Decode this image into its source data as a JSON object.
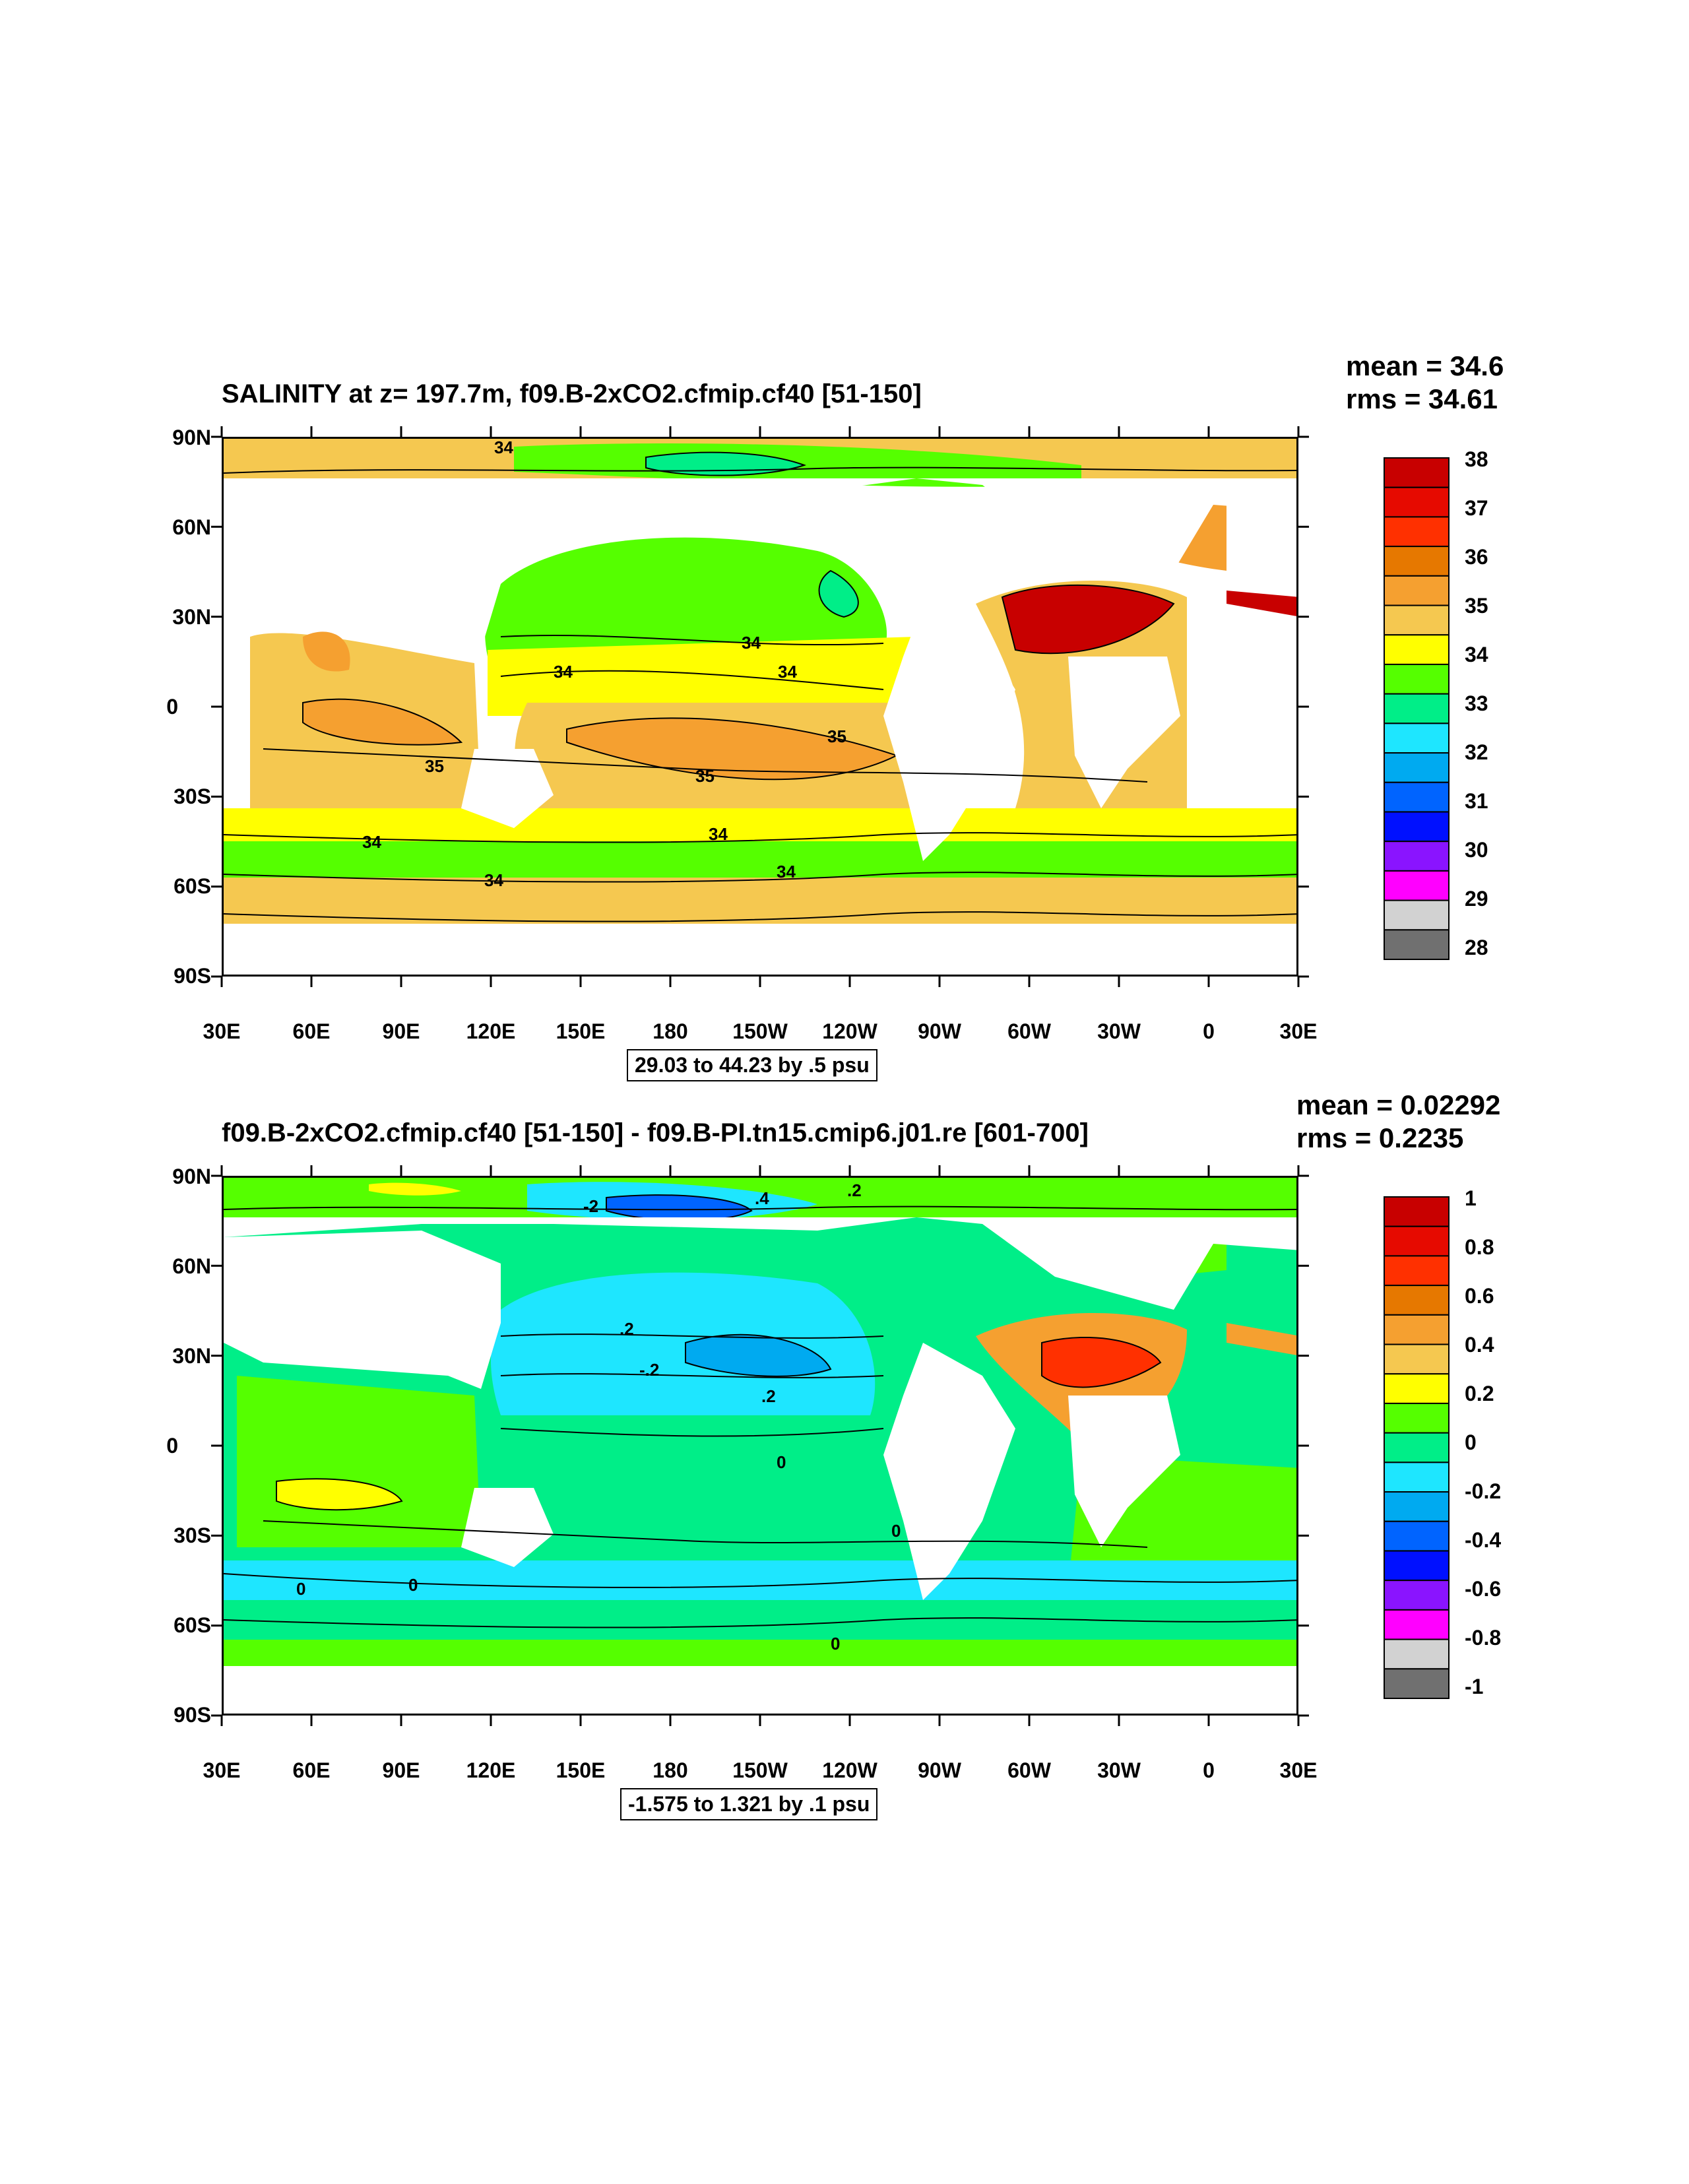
{
  "panels": [
    {
      "title": "SALINITY at z= 197.7m, f09.B-2xCO2.cfmip.cf40 [51-150]",
      "mean": "mean = 34.6",
      "rms": "rms = 34.61",
      "info": "29.03 to 44.23 by .5 psu",
      "lat_labels": [
        "90N",
        "60N",
        "30N",
        "0",
        "30S",
        "60S",
        "90S"
      ],
      "lon_labels": [
        "30E",
        "60E",
        "90E",
        "120E",
        "150E",
        "180",
        "150W",
        "120W",
        "90W",
        "60W",
        "30W",
        "0",
        "30E"
      ],
      "colorbar": {
        "labels": [
          "38",
          "37",
          "36",
          "35",
          "34",
          "33",
          "32",
          "31",
          "30",
          "29",
          "28"
        ],
        "colors": [
          "#c80000",
          "#e60a00",
          "#ff3000",
          "#e67800",
          "#f5a030",
          "#f5c850",
          "#ffff00",
          "#55ff00",
          "#00ee88",
          "#1ee6ff",
          "#00aaf0",
          "#0064ff",
          "#0010ff",
          "#8a14ff",
          "#ff00ff",
          "#d2d2d2",
          "#707070"
        ]
      },
      "contour_labels": [
        "34",
        "34",
        "34",
        "34",
        "35",
        "35",
        "35",
        "34",
        "34",
        "34",
        "34"
      ]
    },
    {
      "title": "f09.B-2xCO2.cfmip.cf40 [51-150] - f09.B-PI.tn15.cmip6.j01.re [601-700]",
      "mean": "mean = 0.02292",
      "rms": "rms = 0.2235",
      "info": "-1.575 to 1.321 by .1 psu",
      "lat_labels": [
        "90N",
        "60N",
        "30N",
        "0",
        "30S",
        "60S",
        "90S"
      ],
      "lon_labels": [
        "30E",
        "60E",
        "90E",
        "120E",
        "150E",
        "180",
        "150W",
        "120W",
        "90W",
        "60W",
        "30W",
        "0",
        "30E"
      ],
      "colorbar": {
        "labels": [
          "1",
          "0.8",
          "0.6",
          "0.4",
          "0.2",
          "0",
          "-0.2",
          "-0.4",
          "-0.6",
          "-0.8",
          "-1"
        ],
        "colors": [
          "#c80000",
          "#e60a00",
          "#ff3000",
          "#e67800",
          "#f5a030",
          "#f5c850",
          "#ffff00",
          "#55ff00",
          "#00ee88",
          "#1ee6ff",
          "#00aaf0",
          "#0064ff",
          "#0010ff",
          "#8a14ff",
          "#ff00ff",
          "#d2d2d2",
          "#707070"
        ]
      },
      "contour_labels": [
        "-2",
        ".4",
        ".2",
        ".2",
        "-.2",
        ".2",
        "0",
        "0",
        "0",
        "0",
        "0"
      ]
    }
  ]
}
